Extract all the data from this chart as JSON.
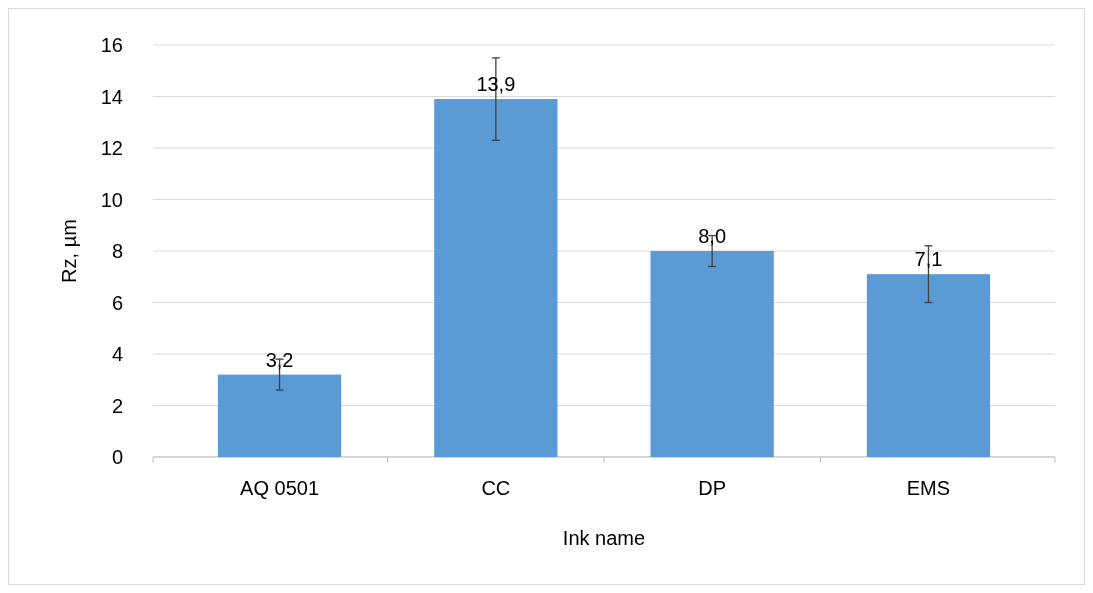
{
  "chart_data": {
    "type": "bar",
    "xlabel": "Ink name",
    "ylabel": "Rz, µm",
    "categories": [
      "AQ 0501",
      "CC",
      "DP",
      "EMS"
    ],
    "values": [
      3.2,
      13.9,
      8.0,
      7.1
    ],
    "value_labels": [
      "3,2",
      "13,9",
      "8,0",
      "7,1"
    ],
    "errors": [
      0.6,
      1.6,
      0.6,
      1.1
    ],
    "color": "#5b9bd5",
    "ylim": [
      0,
      16
    ],
    "yticks": [
      0,
      2,
      4,
      6,
      8,
      10,
      12,
      14,
      16
    ],
    "grid": "y"
  }
}
